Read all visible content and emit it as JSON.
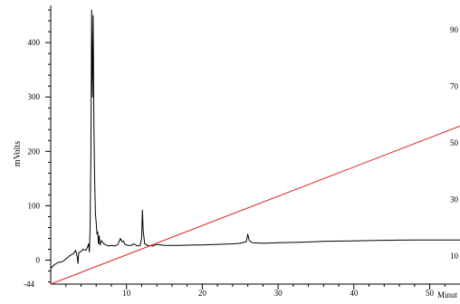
{
  "chart_data": {
    "type": "line",
    "title": "",
    "xlabel": "Minut",
    "ylabel": "mVolts",
    "x_ticks": [
      10,
      20,
      30,
      40,
      50
    ],
    "y_ticks": [
      0,
      100,
      200,
      300,
      400
    ],
    "y_bottom_label": "-44",
    "right_ticks": [
      90,
      70,
      50,
      30,
      10
    ],
    "xlim": [
      0,
      54
    ],
    "ylim": [
      -44,
      475
    ],
    "right_ylim": [
      0,
      100
    ],
    "grid": false,
    "colors": {
      "chromatogram": "#000000",
      "gradient": "#e02020",
      "axis": "#000000"
    },
    "series": [
      {
        "axis": "left",
        "color": "#000000",
        "points": [
          [
            0,
            -15
          ],
          [
            0.5,
            -8
          ],
          [
            1,
            -4
          ],
          [
            1.5,
            -3
          ],
          [
            2,
            2
          ],
          [
            2.5,
            8
          ],
          [
            3,
            12
          ],
          [
            3.3,
            18
          ],
          [
            3.5,
            6
          ],
          [
            3.6,
            -6
          ],
          [
            3.7,
            14
          ],
          [
            4,
            16
          ],
          [
            4.3,
            20
          ],
          [
            4.6,
            18
          ],
          [
            4.8,
            22
          ],
          [
            5.0,
            30
          ],
          [
            5.1,
            15
          ],
          [
            5.2,
            60
          ],
          [
            5.3,
            200
          ],
          [
            5.4,
            460
          ],
          [
            5.5,
            300
          ],
          [
            5.6,
            450
          ],
          [
            5.7,
            250
          ],
          [
            5.8,
            150
          ],
          [
            5.9,
            85
          ],
          [
            6.0,
            70
          ],
          [
            6.1,
            48
          ],
          [
            6.2,
            52
          ],
          [
            6.3,
            30
          ],
          [
            6.4,
            45
          ],
          [
            6.5,
            28
          ],
          [
            6.7,
            36
          ],
          [
            7.0,
            30
          ],
          [
            7.3,
            28
          ],
          [
            7.6,
            26
          ],
          [
            8.0,
            27
          ],
          [
            8.4,
            26
          ],
          [
            8.8,
            28
          ],
          [
            9.0,
            33
          ],
          [
            9.2,
            40
          ],
          [
            9.4,
            34
          ],
          [
            9.6,
            35
          ],
          [
            9.8,
            29
          ],
          [
            10.2,
            27
          ],
          [
            10.6,
            27
          ],
          [
            11.0,
            30
          ],
          [
            11.4,
            26
          ],
          [
            11.8,
            27
          ],
          [
            12.0,
            40
          ],
          [
            12.1,
            92
          ],
          [
            12.2,
            55
          ],
          [
            12.4,
            30
          ],
          [
            12.8,
            27
          ],
          [
            13.5,
            26
          ],
          [
            14,
            29
          ],
          [
            15,
            27
          ],
          [
            17,
            27
          ],
          [
            19,
            28
          ],
          [
            20,
            28
          ],
          [
            22,
            29
          ],
          [
            24,
            30
          ],
          [
            25,
            31
          ],
          [
            25.8,
            34
          ],
          [
            26.0,
            48
          ],
          [
            26.2,
            36
          ],
          [
            26.6,
            32
          ],
          [
            28,
            31
          ],
          [
            30,
            32
          ],
          [
            33,
            33
          ],
          [
            35,
            34
          ],
          [
            36,
            34.5
          ],
          [
            38,
            35
          ],
          [
            40,
            35.5
          ],
          [
            42,
            36
          ],
          [
            44,
            36.5
          ],
          [
            46,
            36.8
          ],
          [
            48,
            37
          ],
          [
            50,
            37
          ],
          [
            52,
            37
          ],
          [
            54,
            37
          ]
        ]
      },
      {
        "axis": "right",
        "color": "#e02020",
        "points": [
          [
            0,
            0
          ],
          [
            54,
            56
          ]
        ]
      }
    ]
  }
}
